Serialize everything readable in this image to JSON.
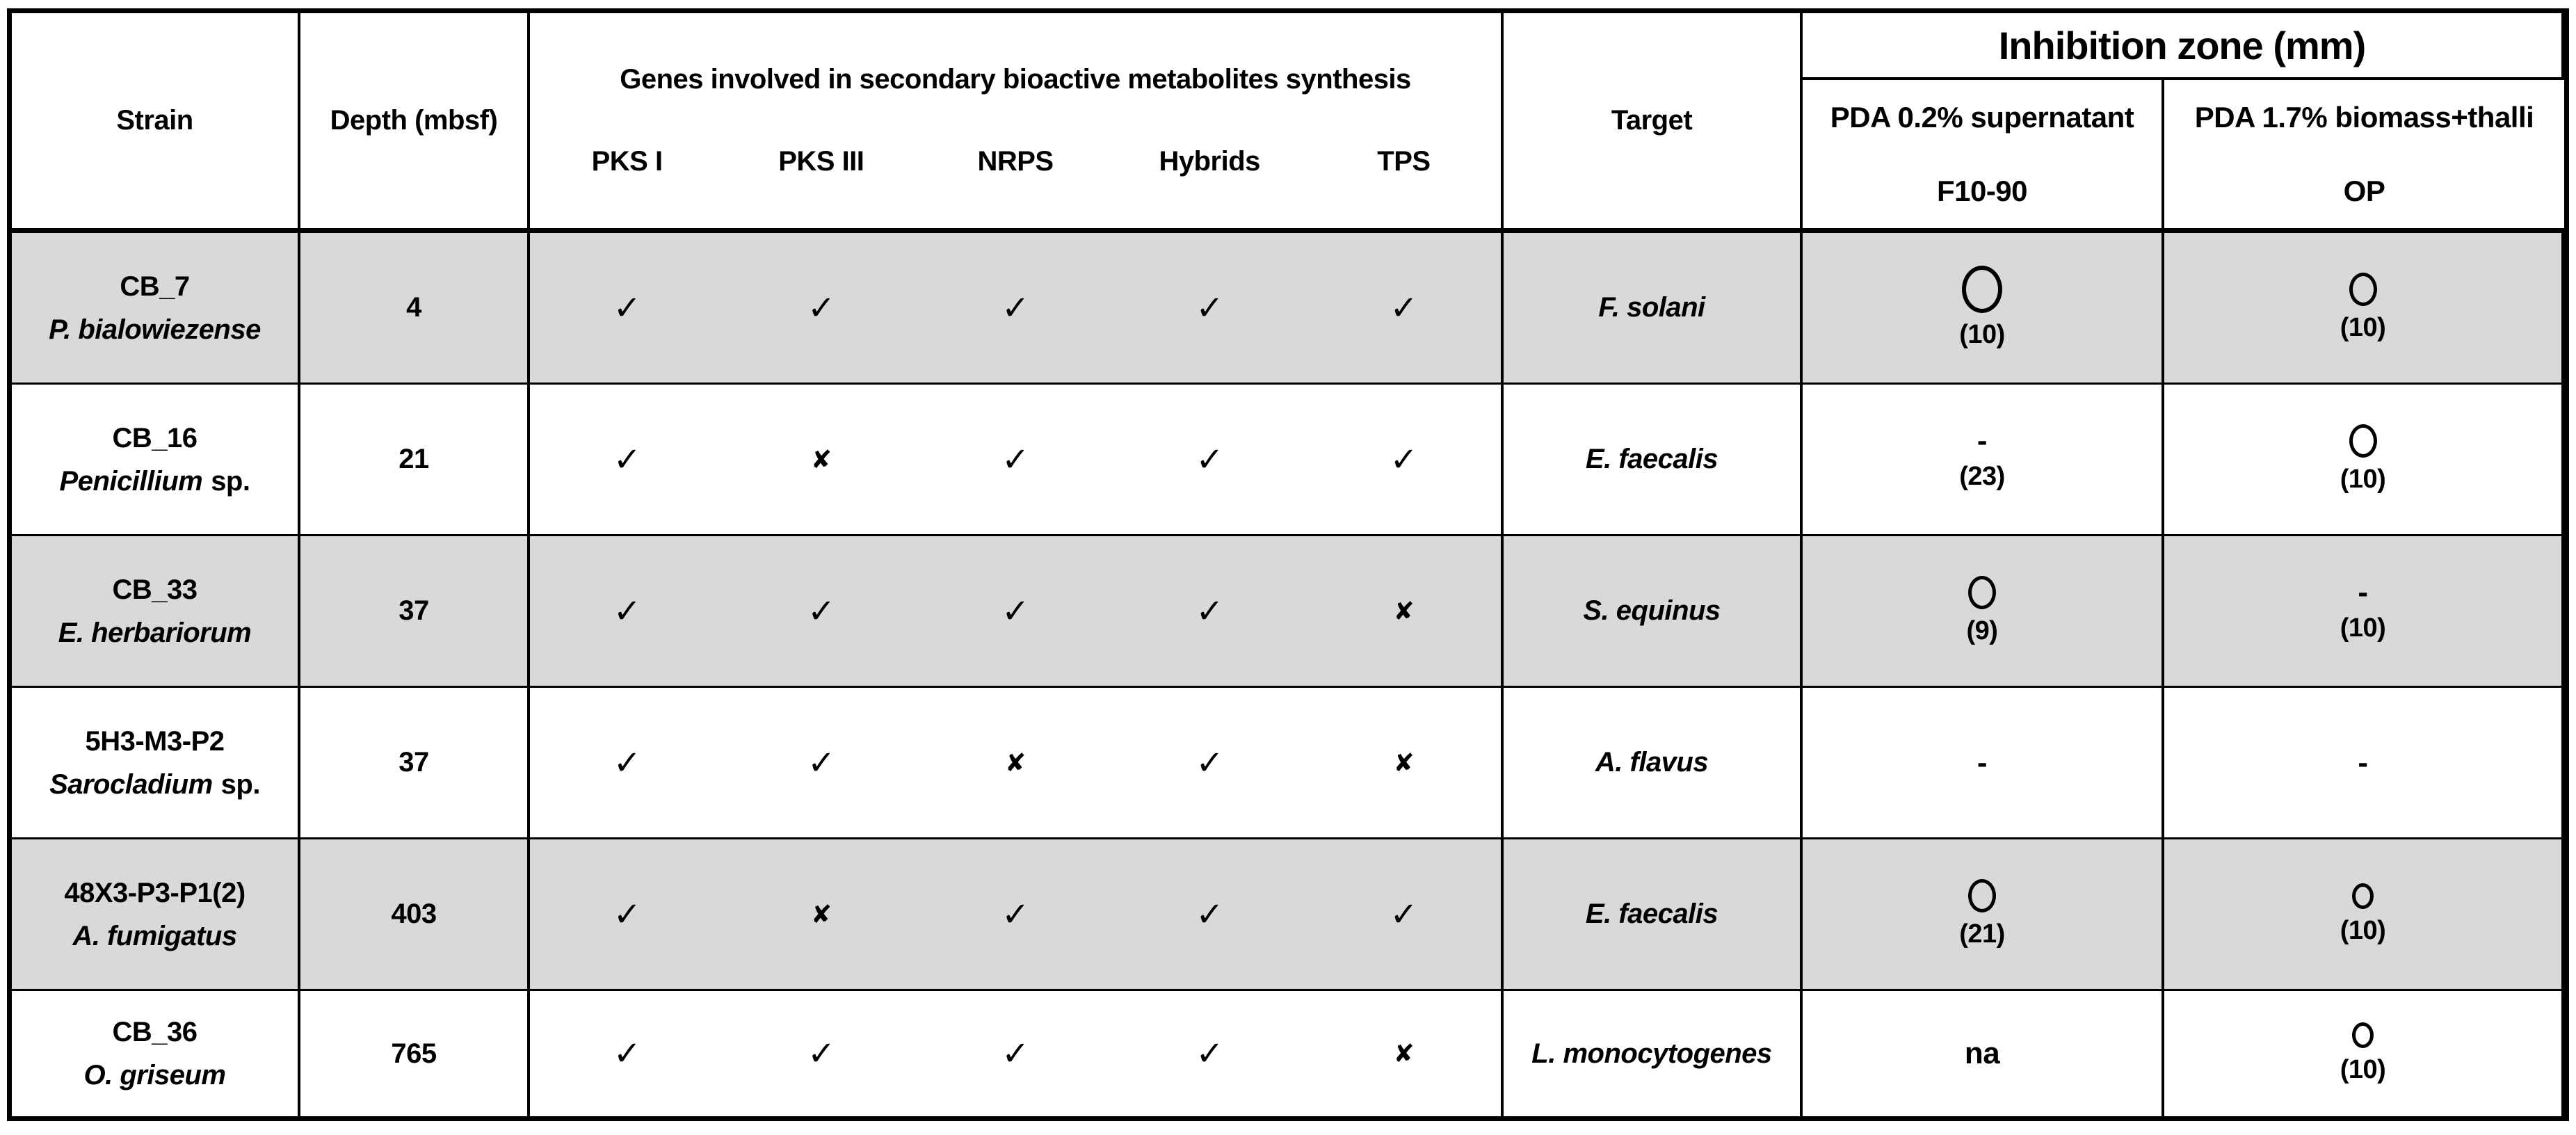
{
  "colors": {
    "row_shade": "#d9d9d9",
    "border": "#000000",
    "text": "#000000"
  },
  "header": {
    "strain": "Strain",
    "depth": "Depth (mbsf)",
    "genes_group": "Genes involved in secondary bioactive metabolites synthesis",
    "gene_columns": [
      "PKS I",
      "PKS III",
      "NRPS",
      "Hybrids",
      "TPS"
    ],
    "target": "Target",
    "inhibition_group": "Inhibition zone (mm)",
    "inhibition_columns": [
      {
        "medium": "PDA 0.2% supernatant",
        "code": "F10-90"
      },
      {
        "medium": "PDA 1.7% biomass+thalli",
        "code": "OP"
      }
    ]
  },
  "legend": {
    "gene_present": "✓",
    "gene_absent": "✘"
  },
  "rows": [
    {
      "strain_id": "CB_7",
      "species": "P. bialowiezense",
      "species_suffix": "",
      "depth": "4",
      "genes": [
        "✓",
        "✓",
        "✓",
        "✓",
        "✓"
      ],
      "target": "F. solani",
      "f10_90": {
        "circle": "large",
        "text": "",
        "value": "(10)"
      },
      "op": {
        "circle": "medium",
        "text": "",
        "value": "(10)"
      }
    },
    {
      "strain_id": "CB_16",
      "species": "Penicillium",
      "species_suffix": "sp.",
      "depth": "21",
      "genes": [
        "✓",
        "✘",
        "✓",
        "✓",
        "✓"
      ],
      "target": "E. faecalis",
      "f10_90": {
        "text": "-",
        "value": "(23)"
      },
      "op": {
        "circle": "medium",
        "text": "",
        "value": "(10)"
      }
    },
    {
      "strain_id": "CB_33",
      "species": "E. herbariorum",
      "species_suffix": "",
      "depth": "37",
      "genes": [
        "✓",
        "✓",
        "✓",
        "✓",
        "✘"
      ],
      "target": "S. equinus",
      "f10_90": {
        "circle": "medium",
        "text": "",
        "value": "(9)"
      },
      "op": {
        "text": "-",
        "value": "(10)"
      }
    },
    {
      "strain_id": "5H3-M3-P2",
      "species": "Sarocladium",
      "species_suffix": "sp.",
      "depth": "37",
      "genes": [
        "✓",
        "✓",
        "✘",
        "✓",
        "✘"
      ],
      "target": "A. flavus",
      "f10_90": {
        "text": "-",
        "value": ""
      },
      "op": {
        "text": "-",
        "value": ""
      }
    },
    {
      "strain_id": "48X3-P3-P1(2)",
      "species": "A. fumigatus",
      "species_suffix": "",
      "depth": "403",
      "genes": [
        "✓",
        "✘",
        "✓",
        "✓",
        "✓"
      ],
      "target": "E. faecalis",
      "f10_90": {
        "circle": "medium",
        "text": "",
        "value": "(21)"
      },
      "op": {
        "circle": "small",
        "text": "",
        "value": "(10)"
      }
    },
    {
      "strain_id": "CB_36",
      "species": "O. griseum",
      "species_suffix": "",
      "depth": "765",
      "genes": [
        "✓",
        "✓",
        "✓",
        "✓",
        "✘"
      ],
      "target": "L. monocytogenes",
      "f10_90": {
        "text": "na",
        "value": ""
      },
      "op": {
        "circle": "small",
        "text": "",
        "value": "(10)"
      }
    }
  ]
}
